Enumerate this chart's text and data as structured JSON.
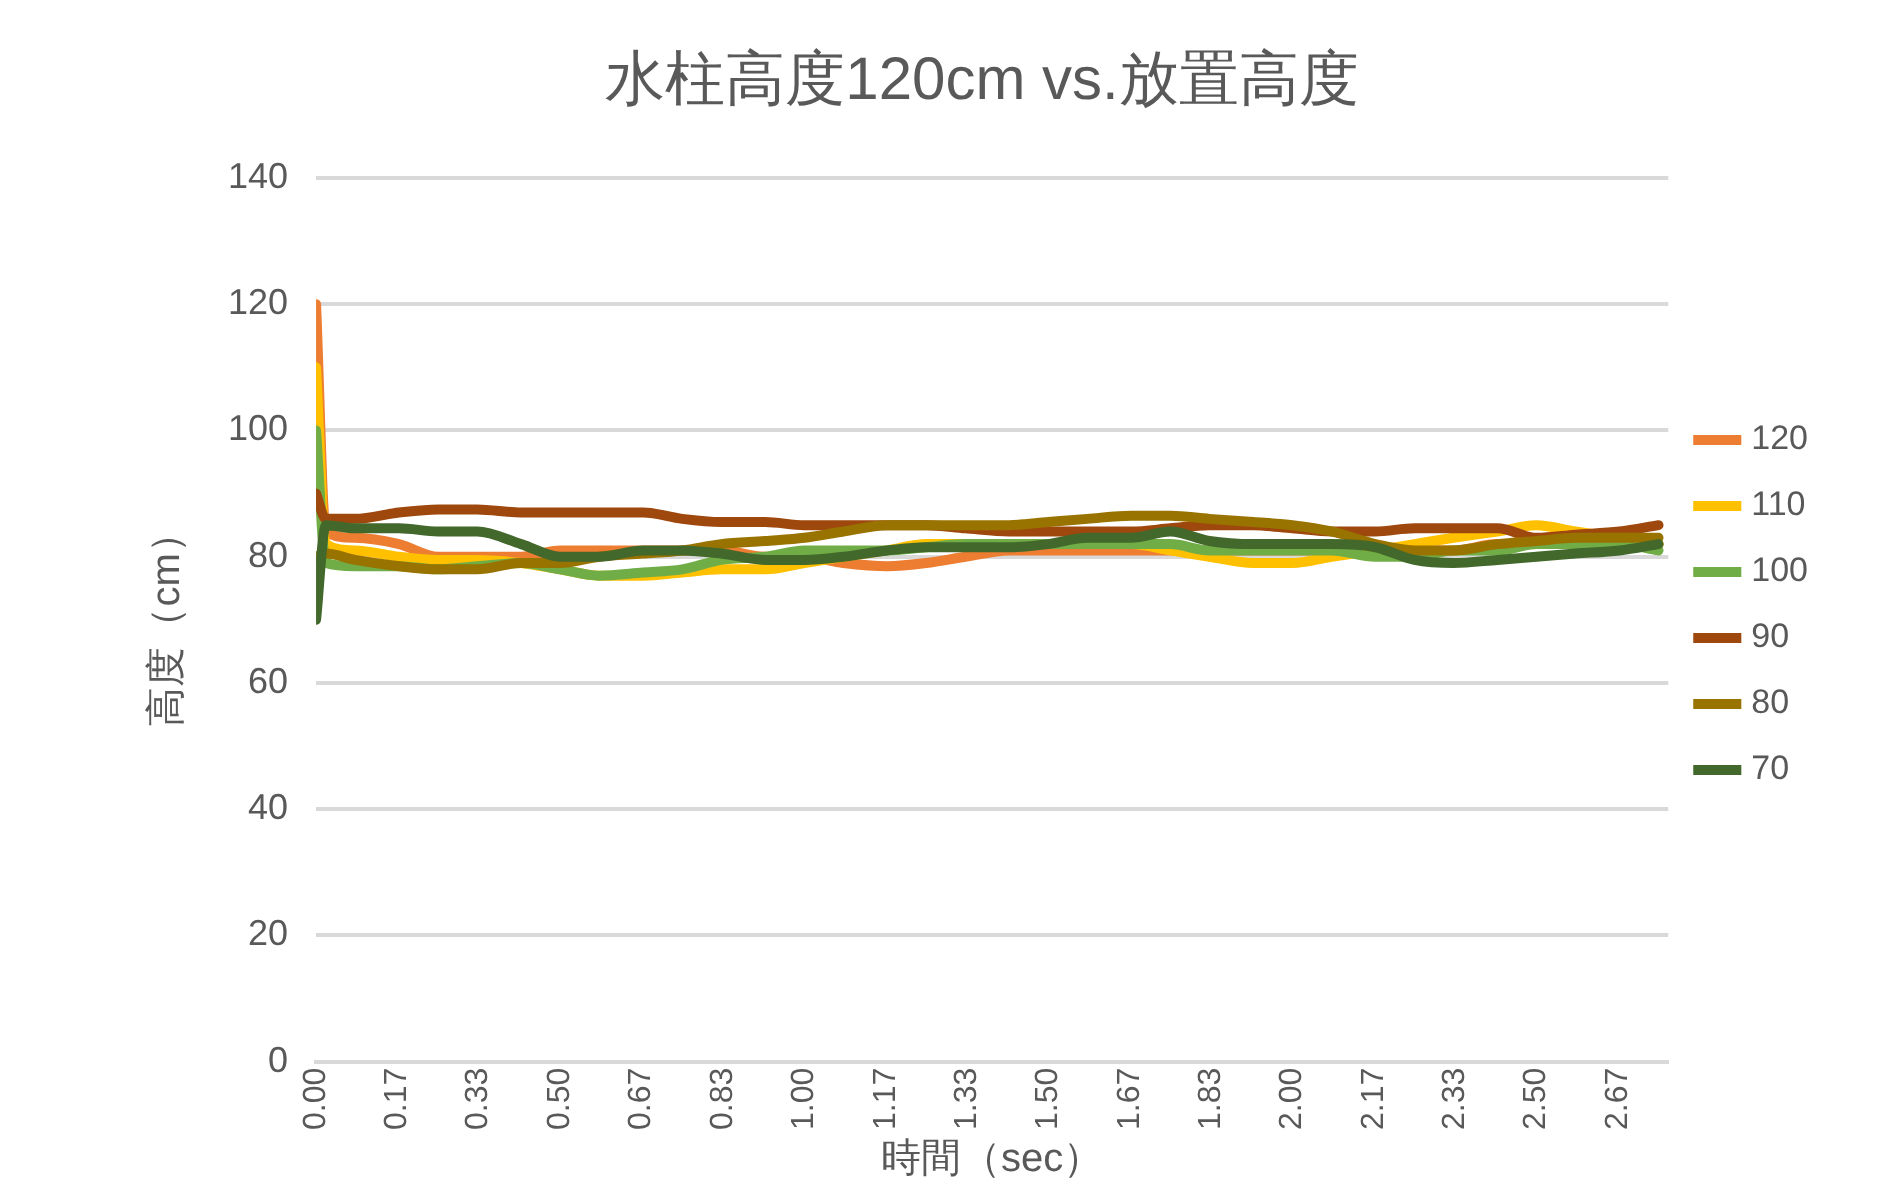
{
  "chart_data": {
    "type": "line",
    "title": "水柱高度120cm vs.放置高度",
    "xlabel": "時間（sec）",
    "ylabel": "高度（cm）",
    "x": [
      0,
      0.02,
      0.08,
      0.17,
      0.25,
      0.33,
      0.42,
      0.5,
      0.58,
      0.67,
      0.75,
      0.83,
      0.92,
      1.0,
      1.08,
      1.17,
      1.25,
      1.33,
      1.42,
      1.5,
      1.58,
      1.67,
      1.75,
      1.83,
      1.92,
      2.0,
      2.08,
      2.17,
      2.25,
      2.33,
      2.42,
      2.5,
      2.58,
      2.67,
      2.75
    ],
    "xlim": [
      0,
      2.77
    ],
    "xticks": [
      {
        "value": 0,
        "label": "0.00"
      },
      {
        "value": 0.167,
        "label": "0.17"
      },
      {
        "value": 0.333,
        "label": "0.33"
      },
      {
        "value": 0.5,
        "label": "0.50"
      },
      {
        "value": 0.667,
        "label": "0.67"
      },
      {
        "value": 0.833,
        "label": "0.83"
      },
      {
        "value": 1,
        "label": "1.00"
      },
      {
        "value": 1.167,
        "label": "1.17"
      },
      {
        "value": 1.333,
        "label": "1.33"
      },
      {
        "value": 1.5,
        "label": "1.50"
      },
      {
        "value": 1.667,
        "label": "1.67"
      },
      {
        "value": 1.833,
        "label": "1.83"
      },
      {
        "value": 2,
        "label": "2.00"
      },
      {
        "value": 2.167,
        "label": "2.17"
      },
      {
        "value": 2.333,
        "label": "2.33"
      },
      {
        "value": 2.5,
        "label": "2.50"
      },
      {
        "value": 2.667,
        "label": "2.67"
      }
    ],
    "ylim": [
      0,
      140
    ],
    "yticks": [
      0,
      20,
      40,
      60,
      80,
      100,
      120,
      140
    ],
    "grid": "y",
    "legend": "right",
    "marker": "none",
    "series": [
      {
        "name": "120",
        "color": "#ed7d31",
        "values": [
          120,
          84,
          83,
          82,
          80,
          80,
          80,
          81,
          81,
          81,
          81,
          81,
          80,
          80,
          79,
          78.5,
          79,
          80,
          81,
          81,
          81,
          81,
          81,
          81,
          81,
          81,
          81,
          81,
          81,
          81,
          82,
          82,
          82,
          82,
          82
        ]
      },
      {
        "name": "110",
        "color": "#ffc000",
        "values": [
          110,
          82,
          81,
          80,
          79.5,
          79.5,
          79,
          78,
          77,
          77,
          77.5,
          78,
          78,
          79,
          80,
          81,
          82,
          82,
          82,
          82,
          82,
          82,
          81,
          80,
          79,
          79,
          80,
          81,
          82,
          83,
          84,
          85,
          84,
          83,
          82
        ]
      },
      {
        "name": "100",
        "color": "#70ad47",
        "values": [
          100,
          79,
          78.5,
          78.5,
          78,
          78.5,
          79,
          78,
          77,
          77.5,
          78,
          79.5,
          80,
          81,
          81,
          81,
          81.5,
          82,
          82,
          82,
          82,
          82,
          82,
          81,
          81,
          81,
          81,
          80,
          80,
          81,
          81,
          82,
          82,
          82,
          81
        ]
      },
      {
        "name": "90",
        "color": "#9e480e",
        "values": [
          90,
          86,
          86,
          87,
          87.5,
          87.5,
          87,
          87,
          87,
          87,
          86,
          85.5,
          85.5,
          85,
          85,
          85,
          85,
          84.5,
          84,
          84,
          84,
          84,
          84.5,
          85,
          85,
          84.5,
          84,
          84,
          84.5,
          84.5,
          84.5,
          83,
          83.5,
          84,
          85
        ]
      },
      {
        "name": "80",
        "color": "#997300",
        "values": [
          80,
          80.5,
          79.5,
          78.5,
          78,
          78,
          79,
          79,
          80,
          80.5,
          81,
          82,
          82.5,
          83,
          84,
          85,
          85,
          85,
          85,
          85.5,
          86,
          86.5,
          86.5,
          86,
          85.5,
          85,
          84,
          82,
          81,
          81,
          82,
          82.5,
          83,
          83,
          83
        ]
      },
      {
        "name": "70",
        "color": "#43682b",
        "values": [
          70,
          85,
          84.5,
          84.5,
          84,
          84,
          82,
          80,
          80,
          81,
          81,
          80.5,
          79.5,
          79.5,
          80,
          81,
          81.5,
          81.5,
          81.5,
          82,
          83,
          83,
          84,
          82.5,
          82,
          82,
          82,
          81.5,
          79.5,
          79,
          79.5,
          80,
          80.5,
          81,
          82
        ]
      }
    ]
  }
}
